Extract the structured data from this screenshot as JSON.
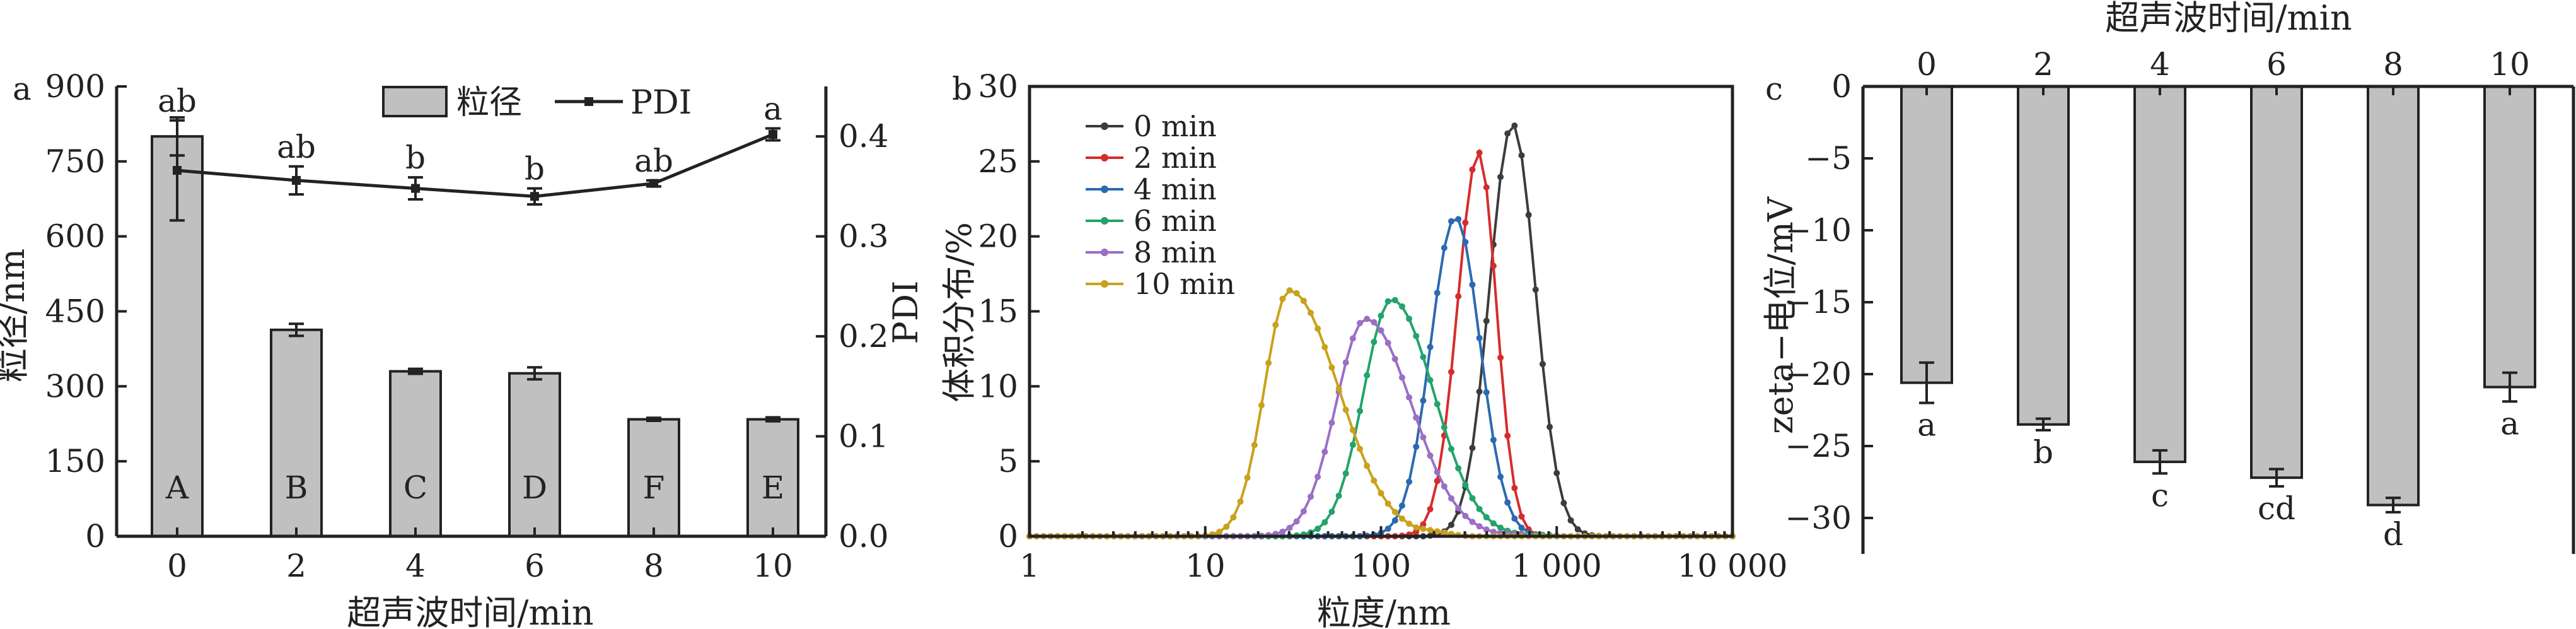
{
  "chart_data": [
    {
      "panel_label": "a",
      "type": "bar+line",
      "categories": [
        "0",
        "2",
        "4",
        "6",
        "8",
        "10"
      ],
      "xlabel": "超声波时间/min",
      "ylabel_left": "粒径/nm",
      "ylabel_right": "PDI",
      "ylim_left": [
        0,
        900
      ],
      "ylim_right": [
        0.0,
        0.45
      ],
      "yticks_left": [
        0,
        150,
        300,
        450,
        600,
        750,
        900
      ],
      "yticks_right": [
        "0.0",
        "0.1",
        "0.2",
        "0.3",
        "0.4"
      ],
      "bars": {
        "name": "粒径",
        "values": [
          800,
          413,
          330,
          326,
          234,
          234
        ],
        "errors": [
          38,
          12,
          5,
          12,
          3,
          4
        ],
        "letters": [
          "A",
          "B",
          "C",
          "D",
          "F",
          "E"
        ]
      },
      "line": {
        "name": "PDI",
        "values": [
          0.366,
          0.356,
          0.348,
          0.34,
          0.353,
          0.402
        ],
        "errors": [
          0.05,
          0.014,
          0.011,
          0.008,
          0.003,
          0.006
        ],
        "letters": [
          "ab",
          "ab",
          "b",
          "b",
          "ab",
          "a"
        ]
      },
      "legend": {
        "bar_label": "粒径",
        "line_label": "PDI"
      }
    },
    {
      "panel_label": "b",
      "type": "line",
      "xscale": "log",
      "xlabel": "粒度/nm",
      "ylabel": "体积分布/%",
      "xlim": [
        1,
        10000
      ],
      "ylim": [
        0,
        30
      ],
      "xtick_labels": [
        "1",
        "10",
        "100",
        "1 000",
        "10 000"
      ],
      "ytick_labels": [
        "0",
        "5",
        "10",
        "15",
        "20",
        "25",
        "30"
      ],
      "series": [
        {
          "name": "0 min",
          "color": "#3c3c3c",
          "peak": 560,
          "height": 27.5,
          "w_left": 0.13,
          "w_right": 0.13,
          "tail": 0
        },
        {
          "name": "2 min",
          "color": "#d62c2c",
          "peak": 360,
          "height": 25.6,
          "w_left": 0.12,
          "w_right": 0.1,
          "tail": 0
        },
        {
          "name": "4 min",
          "color": "#2b6ab0",
          "peak": 265,
          "height": 21.3,
          "w_left": 0.14,
          "w_right": 0.14,
          "tail": 0
        },
        {
          "name": "6 min",
          "color": "#23a36b",
          "peak": 115,
          "height": 15.8,
          "w_left": 0.16,
          "w_right": 0.24,
          "tail": 0.4
        },
        {
          "name": "8 min",
          "color": "#9a6fc4",
          "peak": 82,
          "height": 14.5,
          "w_left": 0.17,
          "w_right": 0.26,
          "tail": 0.6
        },
        {
          "name": "10 min",
          "color": "#c9a11b",
          "peak": 30,
          "height": 16.4,
          "w_left": 0.14,
          "w_right": 0.28,
          "tail": 1.3
        }
      ]
    },
    {
      "panel_label": "c",
      "type": "bar",
      "categories": [
        "0",
        "2",
        "4",
        "6",
        "8",
        "10"
      ],
      "xlabel": "超声波时间/min",
      "xaxis_position": "top",
      "ylabel": "zeta−电位/mV",
      "ylim": [
        -32.5,
        0
      ],
      "ytick_labels": [
        "0",
        "−5",
        "−10",
        "−15",
        "−20",
        "−25",
        "−30"
      ],
      "values": [
        -20.6,
        -23.5,
        -26.1,
        -27.2,
        -29.1,
        -20.9
      ],
      "errors": [
        1.4,
        0.4,
        0.8,
        0.6,
        0.5,
        1.0
      ],
      "letters": [
        "a",
        "b",
        "c",
        "cd",
        "d",
        "a"
      ]
    }
  ]
}
